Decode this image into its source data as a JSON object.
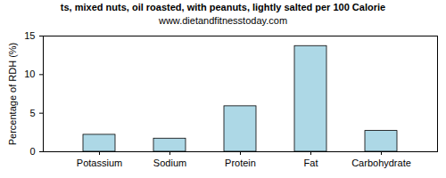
{
  "chart_data": {
    "type": "bar",
    "title": "ts, mixed nuts, oil roasted, with peanuts, lightly salted per 100 Calorie",
    "subtitle": "www.dietandfitnesstoday.com",
    "y_label": "Percentage of RDH (%)",
    "categories": [
      "Potassium",
      "Sodium",
      "Protein",
      "Fat",
      "Carbohydrate"
    ],
    "values": [
      2.2,
      1.7,
      5.9,
      13.7,
      2.7
    ],
    "color": "#add8e6",
    "ylim": [
      0,
      15
    ],
    "yticks": [
      0,
      5,
      10,
      15
    ],
    "grid": false
  }
}
